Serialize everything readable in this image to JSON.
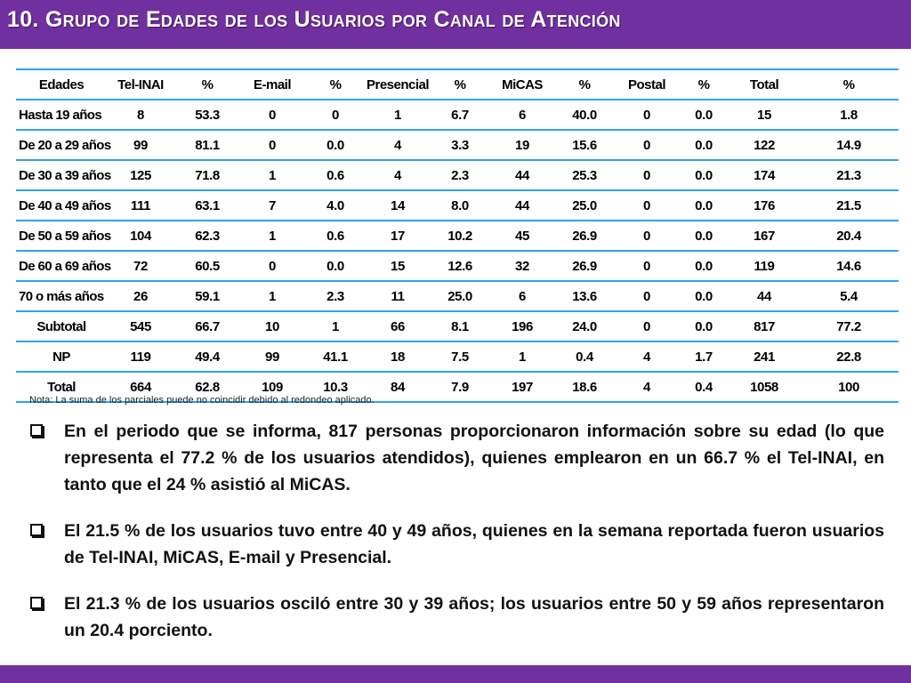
{
  "slide": {
    "title": "10. Grupo de  Edades de los Usuarios por Canal de Atención",
    "accent_color": "#7030a0",
    "rule_color": "#2ea3f2"
  },
  "table": {
    "headers": [
      "Edades",
      "Tel-INAI",
      "%",
      "E-mail",
      "%",
      "Presencial",
      "%",
      "MiCAS",
      "%",
      "Postal",
      "%",
      "Total",
      "%"
    ],
    "rows": [
      [
        "Hasta 19 años",
        "8",
        "53.3",
        "0",
        "0",
        "1",
        "6.7",
        "6",
        "40.0",
        "0",
        "0.0",
        "15",
        "1.8"
      ],
      [
        "De 20 a 29 años",
        "99",
        "81.1",
        "0",
        "0.0",
        "4",
        "3.3",
        "19",
        "15.6",
        "0",
        "0.0",
        "122",
        "14.9"
      ],
      [
        "De 30 a 39 años",
        "125",
        "71.8",
        "1",
        "0.6",
        "4",
        "2.3",
        "44",
        "25.3",
        "0",
        "0.0",
        "174",
        "21.3"
      ],
      [
        "De 40 a 49 años",
        "111",
        "63.1",
        "7",
        "4.0",
        "14",
        "8.0",
        "44",
        "25.0",
        "0",
        "0.0",
        "176",
        "21.5"
      ],
      [
        "De 50 a 59 años",
        "104",
        "62.3",
        "1",
        "0.6",
        "17",
        "10.2",
        "45",
        "26.9",
        "0",
        "0.0",
        "167",
        "20.4"
      ],
      [
        "De 60 a 69 años",
        "72",
        "60.5",
        "0",
        "0.0",
        "15",
        "12.6",
        "32",
        "26.9",
        "0",
        "0.0",
        "119",
        "14.6"
      ],
      [
        "70 o más años",
        "26",
        "59.1",
        "1",
        "2.3",
        "11",
        "25.0",
        "6",
        "13.6",
        "0",
        "0.0",
        "44",
        "5.4"
      ]
    ],
    "summary_rows": [
      [
        "Subtotal",
        "545",
        "66.7",
        "10",
        "1",
        "66",
        "8.1",
        "196",
        "24.0",
        "0",
        "0.0",
        "817",
        "77.2"
      ],
      [
        "NP",
        "119",
        "49.4",
        "99",
        "41.1",
        "18",
        "7.5",
        "1",
        "0.4",
        "4",
        "1.7",
        "241",
        "22.8"
      ],
      [
        "Total",
        "664",
        "62.8",
        "109",
        "10.3",
        "84",
        "7.9",
        "197",
        "18.6",
        "4",
        "0.4",
        "1058",
        "100"
      ]
    ],
    "note": "Nota: La suma de los parciales puede no coincidir debido al redondeo aplicado."
  },
  "bullets": [
    "En el periodo que se informa, 817 personas proporcionaron información sobre su edad (lo que representa el 77.2 % de los usuarios atendidos), quienes emplearon en un 66.7 % el Tel-INAI, en tanto que el 24 % asistió al MiCAS.",
    "El 21.5 % de los usuarios tuvo entre 40 y 49 años, quienes en la semana reportada fueron usuarios de Tel-INAI, MiCAS, E-mail y Presencial.",
    "El 21.3 % de los usuarios osciló entre 30 y 39 años; los usuarios entre 50 y 59 años representaron un 20.4 porciento."
  ],
  "icons": {
    "bullet": "checkbox-bullet-icon"
  }
}
